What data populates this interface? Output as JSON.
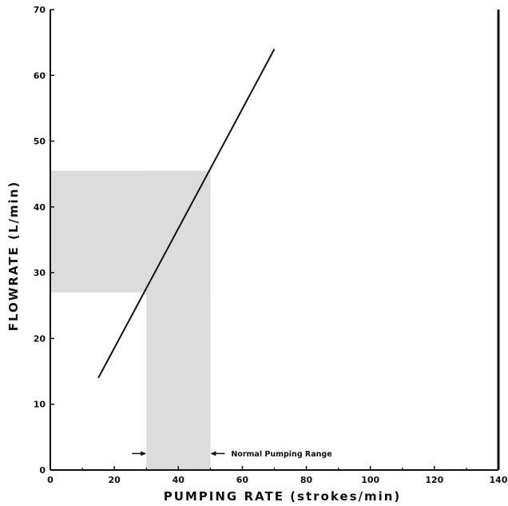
{
  "chart_data": {
    "type": "line",
    "title": "",
    "xlabel": "PUMPING RATE (strokes/min)",
    "ylabel": "FLOWRATE (L/min)",
    "xlim": [
      0,
      140
    ],
    "ylim": [
      0,
      70
    ],
    "xticks": [
      0,
      20,
      40,
      60,
      80,
      100,
      120,
      140
    ],
    "yticks": [
      0,
      10,
      20,
      30,
      40,
      50,
      60,
      70
    ],
    "grid": false,
    "series": [
      {
        "x": [
          15,
          70
        ],
        "y": [
          14,
          64
        ]
      }
    ],
    "shaded_regions": [
      {
        "x": [
          0,
          50
        ],
        "y": [
          27,
          45.5
        ]
      },
      {
        "x": [
          30,
          50
        ],
        "y": [
          0,
          45.5
        ]
      }
    ],
    "annotations": [
      {
        "text": "Normal Pumping Range",
        "x_range": [
          30,
          50
        ],
        "y": 2.5
      }
    ],
    "colors": {
      "line": "#111111",
      "shade": "#dcdcdc",
      "axis": "#111111"
    }
  }
}
